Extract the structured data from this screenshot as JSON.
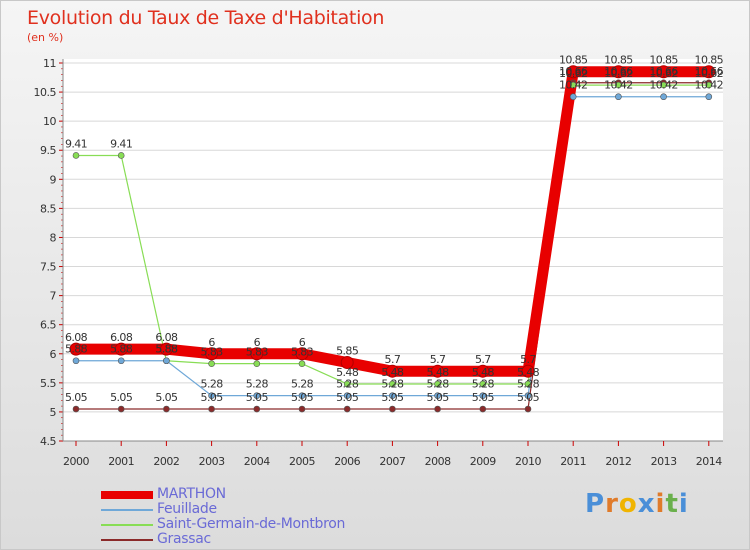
{
  "title": "Evolution du Taux de Taxe d'Habitation",
  "subtitle": "(en %)",
  "logo": {
    "text": "Proxiti",
    "colors": [
      "#4a8fd8",
      "#e07b2a",
      "#f0b400",
      "#4a8fd8",
      "#e07b2a",
      "#6ab04c",
      "#4a8fd8"
    ]
  },
  "chart_data": {
    "type": "line",
    "title": "Evolution du Taux de Taxe d'Habitation",
    "ylabel": "(en %)",
    "xlabel": "",
    "x": [
      "2000",
      "2001",
      "2002",
      "2003",
      "2004",
      "2005",
      "2006",
      "2007",
      "2008",
      "2009",
      "2010",
      "2011",
      "2012",
      "2013",
      "2014"
    ],
    "ylim": [
      4.5,
      11
    ],
    "yticks": [
      "4.5",
      "5",
      "5.5",
      "6",
      "6.5",
      "7",
      "7.5",
      "8",
      "8.5",
      "9",
      "9.5",
      "10",
      "10.5",
      "11"
    ],
    "legend_position": "bottom-left",
    "series": [
      {
        "name": "MARTHON",
        "color": "#e80000",
        "values": [
          6.08,
          6.08,
          6.08,
          6,
          6,
          6,
          5.85,
          5.7,
          5.7,
          5.7,
          5.7,
          10.85,
          10.85,
          10.85,
          10.85
        ],
        "labels": [
          "6.08",
          "6.08",
          "6.08",
          "6",
          "6",
          "6",
          "5.85",
          "5.7",
          "5.7",
          "5.7",
          "5.7",
          "10.85",
          "10.85",
          "10.85",
          "10.85"
        ]
      },
      {
        "name": "Feuillade",
        "color": "#6fa8d8",
        "values": [
          5.88,
          5.88,
          5.88,
          5.28,
          5.28,
          5.28,
          5.28,
          5.28,
          5.28,
          5.28,
          5.28,
          10.42,
          10.42,
          10.42,
          10.42
        ],
        "labels": [
          "5.88",
          "5.88",
          "5.88",
          "5.28",
          "5.28",
          "5.28",
          "5.28",
          "5.28",
          "5.28",
          "5.28",
          "5.28",
          "10.42",
          "10.42",
          "10.42",
          "10.42"
        ]
      },
      {
        "name": "Saint-Germain-de-Montbron",
        "color": "#88dd55",
        "values": [
          9.41,
          9.41,
          5.88,
          5.83,
          5.83,
          5.83,
          5.48,
          5.48,
          5.48,
          5.48,
          5.48,
          10.62,
          10.62,
          10.62,
          10.62
        ],
        "labels": [
          "9.41",
          "9.41",
          "5.88",
          "5.83",
          "5.83",
          "5.83",
          "5.48",
          "5.48",
          "5.48",
          "5.48",
          "5.48",
          "10.62",
          "10.62",
          "10.62",
          "10.62"
        ]
      },
      {
        "name": "Grassac",
        "color": "#8b2a2a",
        "values": [
          5.05,
          5.05,
          5.05,
          5.05,
          5.05,
          5.05,
          5.05,
          5.05,
          5.05,
          5.05,
          5.05,
          10.66,
          10.66,
          10.66,
          10.66
        ],
        "labels": [
          "5.05",
          "5.05",
          "5.05",
          "5.05",
          "5.05",
          "5.05",
          "5.05",
          "5.05",
          "5.05",
          "5.05",
          "5.05",
          "10.66",
          "10.66",
          "10.66",
          "10.66"
        ]
      }
    ]
  }
}
